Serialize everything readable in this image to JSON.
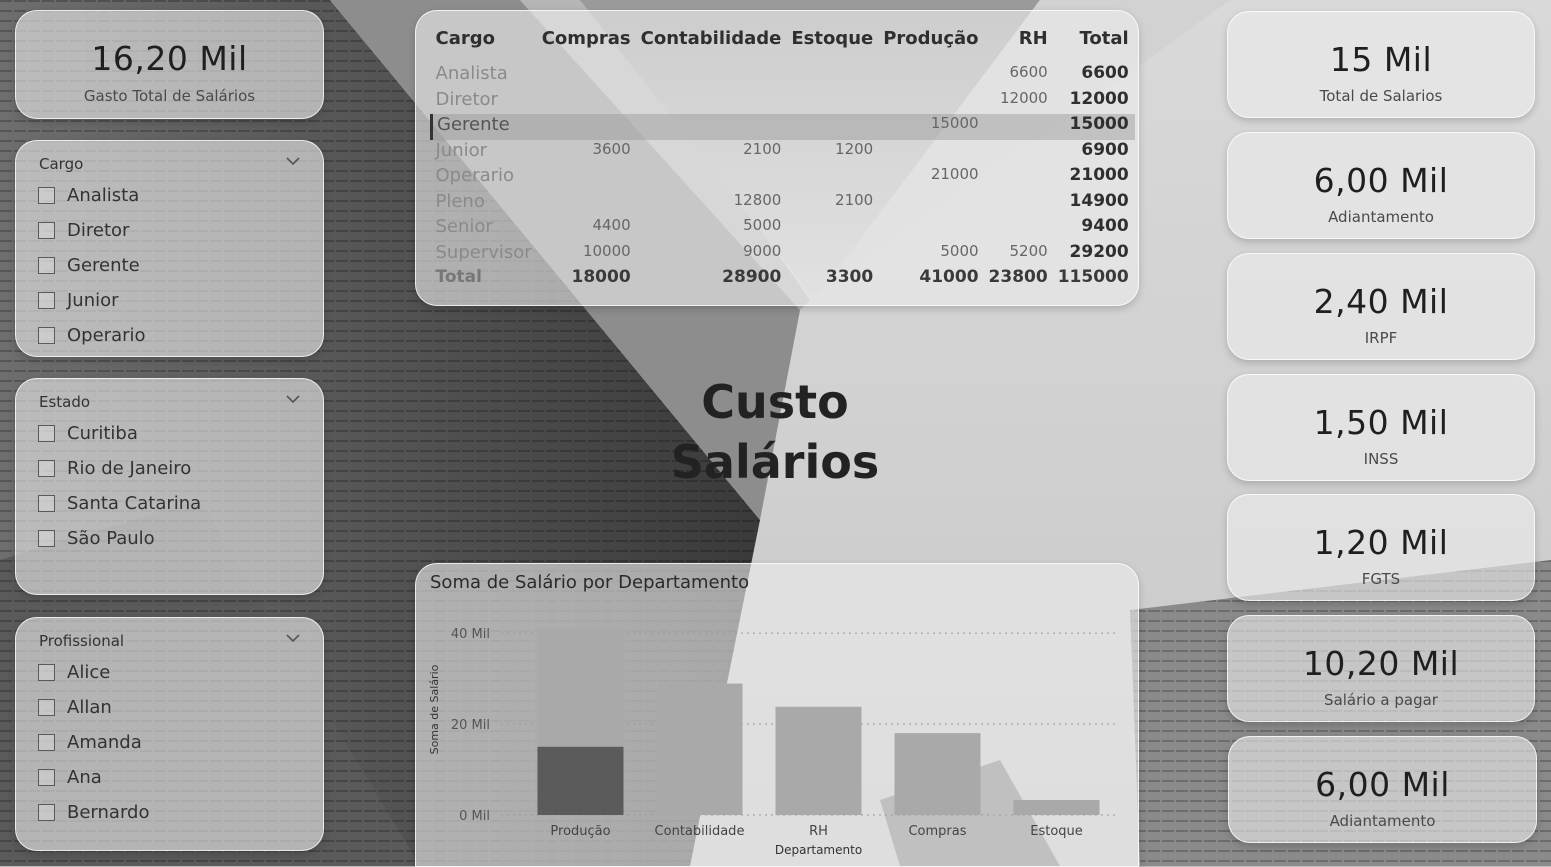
{
  "kpis_left": {
    "gasto_total": {
      "value": "16,20 Mil",
      "label": "Gasto Total de Salários"
    }
  },
  "slicers": {
    "cargo": {
      "title": "Cargo",
      "items": [
        "Analista",
        "Diretor",
        "Gerente",
        "Junior",
        "Operario"
      ]
    },
    "estado": {
      "title": "Estado",
      "items": [
        "Curitiba",
        "Rio de Janeiro",
        "Santa Catarina",
        "São Paulo"
      ]
    },
    "profissional": {
      "title": "Profissional",
      "items": [
        "Alice",
        "Allan",
        "Amanda",
        "Ana",
        "Bernardo"
      ]
    }
  },
  "matrix": {
    "headers": [
      "Cargo",
      "Compras",
      "Contabilidade",
      "Estoque",
      "Produção",
      "RH",
      "Total"
    ],
    "rows": [
      {
        "label": "Analista",
        "values": [
          "",
          "",
          "",
          "",
          "6600",
          "6600"
        ]
      },
      {
        "label": "Diretor",
        "values": [
          "",
          "",
          "",
          "",
          "12000",
          "12000"
        ]
      },
      {
        "label": "Gerente",
        "values": [
          "",
          "",
          "",
          "15000",
          "",
          "15000"
        ]
      },
      {
        "label": "Junior",
        "values": [
          "3600",
          "2100",
          "1200",
          "",
          "",
          "6900"
        ]
      },
      {
        "label": "Operario",
        "values": [
          "",
          "",
          "",
          "21000",
          "",
          "21000"
        ]
      },
      {
        "label": "Pleno",
        "values": [
          "",
          "12800",
          "2100",
          "",
          "",
          "14900"
        ]
      },
      {
        "label": "Senior",
        "values": [
          "4400",
          "5000",
          "",
          "",
          "",
          "9400"
        ]
      },
      {
        "label": "Supervisor",
        "values": [
          "10000",
          "9000",
          "",
          "5000",
          "5200",
          "29200"
        ]
      }
    ],
    "total_row": {
      "label": "Total",
      "values": [
        "18000",
        "28900",
        "3300",
        "41000",
        "23800",
        "115000"
      ]
    },
    "selected_row": "Gerente"
  },
  "page_title": {
    "line1": "Custo",
    "line2": "Salários"
  },
  "kpis_right": [
    {
      "value": "15 Mil",
      "label": "Total de Salarios"
    },
    {
      "value": "6,00 Mil",
      "label": "Adiantamento"
    },
    {
      "value": "2,40 Mil",
      "label": "IRPF"
    },
    {
      "value": "1,50 Mil",
      "label": "INSS"
    },
    {
      "value": "1,20 Mil",
      "label": "FGTS"
    },
    {
      "value": "10,20 Mil",
      "label": "Salário a pagar"
    },
    {
      "value": "6,00 Mil",
      "label": "Adiantamento"
    }
  ],
  "chart_data": {
    "type": "bar",
    "title": "Soma de Salário por Departamento",
    "xlabel": "Departamento",
    "ylabel": "Soma de Salário",
    "categories": [
      "Produção",
      "Contabilidade",
      "RH",
      "Compras",
      "Estoque"
    ],
    "values": [
      41000,
      28900,
      23800,
      18000,
      3300
    ],
    "highlight": {
      "category": "Produção",
      "value": 15000
    },
    "yticks": [
      {
        "value": 0,
        "label": "0 Mil"
      },
      {
        "value": 20000,
        "label": "20 Mil"
      },
      {
        "value": 40000,
        "label": "40 Mil"
      }
    ],
    "ylim": [
      0,
      42000
    ],
    "grid": true,
    "colors": {
      "bar": "#a9a9a9",
      "highlight": "#5b5b5b"
    }
  }
}
